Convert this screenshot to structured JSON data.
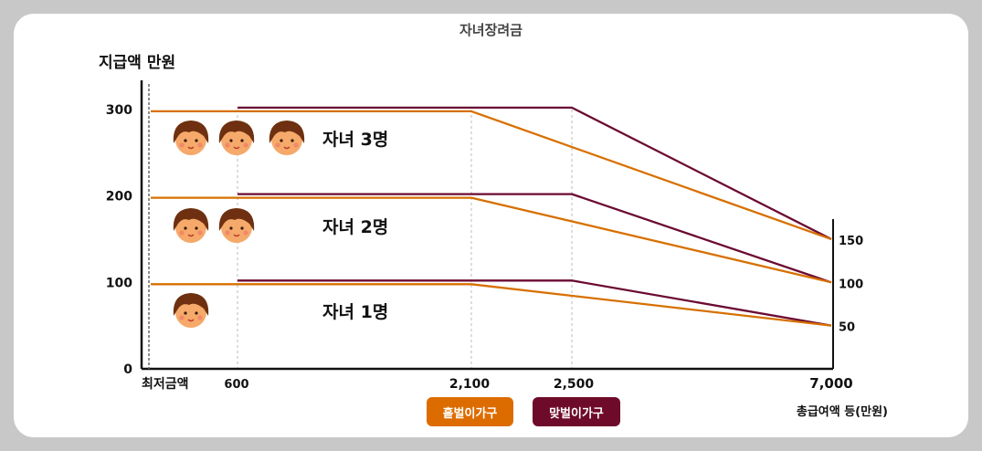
{
  "title": "자녀장려금",
  "chart_data": {
    "type": "line",
    "title": "자녀장려금",
    "ylabel": "지급액 만원",
    "xlabel": "총급여액 등(만원)",
    "x_ticks": [
      "최저금액",
      "600",
      "2,100",
      "2,500",
      "7,000"
    ],
    "y_ticks": [
      "0",
      "100",
      "200",
      "300"
    ],
    "right_ticks": [
      "150",
      "100",
      "50"
    ],
    "ylim": [
      0,
      300
    ],
    "colors": {
      "single": "#d77000",
      "dual": "#6b0a32"
    },
    "legend": [
      "홑벌이가구",
      "맞벌이가구"
    ],
    "groups": [
      {
        "label": "자녀 1명",
        "children": 1,
        "series": [
          {
            "name": "홑벌이가구",
            "points": [
              [
                0,
                100
              ],
              [
                2100,
                100
              ],
              [
                7000,
                50
              ]
            ]
          },
          {
            "name": "맞벌이가구",
            "points": [
              [
                600,
                100
              ],
              [
                2500,
                100
              ],
              [
                7000,
                50
              ]
            ]
          }
        ]
      },
      {
        "label": "자녀 2명",
        "children": 2,
        "series": [
          {
            "name": "홑벌이가구",
            "points": [
              [
                0,
                200
              ],
              [
                2100,
                200
              ],
              [
                7000,
                100
              ]
            ]
          },
          {
            "name": "맞벌이가구",
            "points": [
              [
                600,
                200
              ],
              [
                2500,
                200
              ],
              [
                7000,
                100
              ]
            ]
          }
        ]
      },
      {
        "label": "자녀 3명",
        "children": 3,
        "series": [
          {
            "name": "홑벌이가구",
            "points": [
              [
                0,
                300
              ],
              [
                2100,
                300
              ],
              [
                7000,
                150
              ]
            ]
          },
          {
            "name": "맞벌이가구",
            "points": [
              [
                600,
                300
              ],
              [
                2500,
                300
              ],
              [
                7000,
                150
              ]
            ]
          }
        ]
      }
    ]
  }
}
